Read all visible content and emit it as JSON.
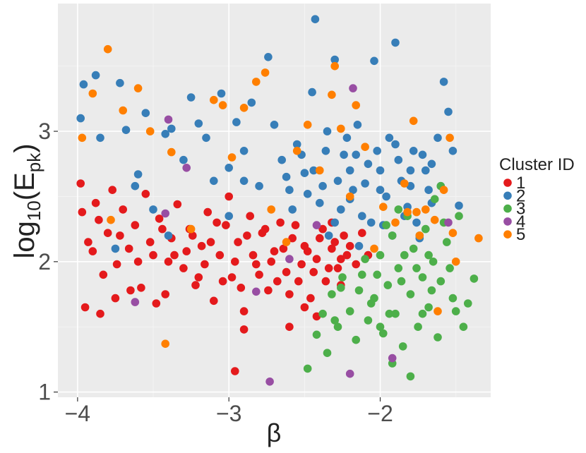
{
  "chart_data": {
    "type": "scatter",
    "title": "",
    "xlabel": "β",
    "ylabel_main": "log",
    "ylabel_sub": "10",
    "ylabel_open": "(E",
    "ylabel_sub2": "pk",
    "ylabel_close": ")",
    "xlim": [
      -4.13,
      -1.27
    ],
    "ylim": [
      0.96,
      3.98
    ],
    "x_ticks": [
      -4,
      -3,
      -2
    ],
    "x_tick_labels": [
      "−4",
      "−3",
      "−2"
    ],
    "y_ticks": [
      1,
      2,
      3
    ],
    "y_tick_labels": [
      "1",
      "2",
      "3"
    ],
    "grid": true,
    "legend_title": "Cluster ID",
    "legend_position": "right",
    "series": [
      {
        "name": "1",
        "color": "#E41A1C",
        "points": [
          [
            -3.98,
            2.6
          ],
          [
            -3.97,
            2.38
          ],
          [
            -3.93,
            2.15
          ],
          [
            -3.9,
            2.08
          ],
          [
            -3.86,
            2.32
          ],
          [
            -3.83,
            1.9
          ],
          [
            -3.8,
            2.22
          ],
          [
            -3.77,
            2.55
          ],
          [
            -3.74,
            1.98
          ],
          [
            -3.7,
            2.4
          ],
          [
            -3.66,
            2.1
          ],
          [
            -3.62,
            2.28
          ],
          [
            -3.58,
            1.8
          ],
          [
            -3.55,
            2.52
          ],
          [
            -3.5,
            2.05
          ],
          [
            -3.46,
            2.33
          ],
          [
            -3.42,
            1.75
          ],
          [
            -3.38,
            2.18
          ],
          [
            -3.34,
            2.44
          ],
          [
            -3.3,
            1.95
          ],
          [
            -3.26,
            2.25
          ],
          [
            -3.22,
            1.82
          ],
          [
            -3.18,
            2.12
          ],
          [
            -3.14,
            2.38
          ],
          [
            -3.1,
            1.7
          ],
          [
            -3.06,
            2.05
          ],
          [
            -3.02,
            2.28
          ],
          [
            -2.98,
            1.88
          ],
          [
            -2.94,
            2.15
          ],
          [
            -2.9,
            1.62
          ],
          [
            -2.86,
            2.35
          ],
          [
            -2.82,
            1.98
          ],
          [
            -2.78,
            2.22
          ],
          [
            -2.74,
            1.78
          ],
          [
            -2.7,
            2.08
          ],
          [
            -2.66,
            2.3
          ],
          [
            -2.62,
            1.92
          ],
          [
            -2.58,
            2.18
          ],
          [
            -2.54,
            1.85
          ],
          [
            -2.5,
            2.12
          ],
          [
            -2.46,
            1.72
          ],
          [
            -2.42,
            2.02
          ],
          [
            -2.38,
            2.25
          ],
          [
            -2.34,
            1.95
          ],
          [
            -2.3,
            2.15
          ],
          [
            -2.26,
            1.82
          ],
          [
            -2.22,
            2.05
          ],
          [
            -3.95,
            1.65
          ],
          [
            -3.85,
            1.6
          ],
          [
            -3.75,
            1.72
          ],
          [
            -3.65,
            1.78
          ],
          [
            -3.48,
            1.68
          ],
          [
            -3.4,
            2.0
          ],
          [
            -3.28,
            2.08
          ],
          [
            -3.2,
            1.88
          ],
          [
            -3.12,
            2.15
          ],
          [
            -3.0,
            2.5
          ],
          [
            -2.96,
            2.0
          ],
          [
            -2.92,
            1.8
          ],
          [
            -2.88,
            2.2
          ],
          [
            -2.84,
            2.05
          ],
          [
            -2.8,
            1.9
          ],
          [
            -2.76,
            2.25
          ],
          [
            -2.72,
            2.0
          ],
          [
            -2.68,
            1.85
          ],
          [
            -2.64,
            2.1
          ],
          [
            -2.6,
            1.75
          ],
          [
            -2.56,
            2.28
          ],
          [
            -2.52,
            1.98
          ],
          [
            -2.48,
            2.08
          ],
          [
            -2.44,
            1.92
          ],
          [
            -2.4,
            2.18
          ],
          [
            -2.36,
            1.85
          ],
          [
            -2.32,
            2.1
          ],
          [
            -2.28,
            1.95
          ],
          [
            -2.24,
            2.2
          ],
          [
            -3.88,
            2.45
          ],
          [
            -3.72,
            2.2
          ],
          [
            -3.6,
            2.0
          ],
          [
            -3.52,
            2.15
          ],
          [
            -3.44,
            2.25
          ],
          [
            -3.36,
            2.05
          ],
          [
            -3.24,
            2.2
          ],
          [
            -3.16,
            1.98
          ],
          [
            -3.08,
            2.3
          ],
          [
            -3.04,
            1.85
          ],
          [
            -2.9,
            1.48
          ],
          [
            -2.96,
            1.16
          ],
          [
            -2.6,
            1.5
          ],
          [
            -2.5,
            1.65
          ],
          [
            -2.42,
            1.58
          ],
          [
            -2.32,
            2.3
          ],
          [
            -2.26,
            2.02
          ],
          [
            -2.2,
            2.12
          ],
          [
            -2.16,
            1.98
          ],
          [
            -2.12,
            2.22
          ],
          [
            -2.08,
            2.05
          ]
        ]
      },
      {
        "name": "2",
        "color": "#377EB8",
        "points": [
          [
            -3.98,
            3.1
          ],
          [
            -3.96,
            3.36
          ],
          [
            -3.88,
            3.43
          ],
          [
            -3.85,
            2.95
          ],
          [
            -3.72,
            3.37
          ],
          [
            -3.68,
            3.01
          ],
          [
            -3.6,
            2.67
          ],
          [
            -3.55,
            3.14
          ],
          [
            -3.5,
            2.4
          ],
          [
            -3.42,
            2.98
          ],
          [
            -3.38,
            3.02
          ],
          [
            -3.3,
            2.78
          ],
          [
            -3.25,
            3.26
          ],
          [
            -3.2,
            3.06
          ],
          [
            -3.15,
            2.95
          ],
          [
            -3.1,
            2.62
          ],
          [
            -3.05,
            3.29
          ],
          [
            -3.0,
            2.72
          ],
          [
            -2.95,
            3.07
          ],
          [
            -2.9,
            2.85
          ],
          [
            -2.85,
            3.22
          ],
          [
            -2.8,
            2.58
          ],
          [
            -2.74,
            3.57
          ],
          [
            -2.7,
            3.05
          ],
          [
            -2.65,
            2.78
          ],
          [
            -2.6,
            2.55
          ],
          [
            -2.55,
            2.9
          ],
          [
            -2.5,
            2.68
          ],
          [
            -2.45,
            3.3
          ],
          [
            -2.43,
            3.86
          ],
          [
            -2.4,
            2.45
          ],
          [
            -2.35,
            3.0
          ],
          [
            -2.3,
            3.55
          ],
          [
            -2.28,
            2.62
          ],
          [
            -2.24,
            2.82
          ],
          [
            -2.2,
            2.48
          ],
          [
            -2.15,
            3.05
          ],
          [
            -2.12,
            2.35
          ],
          [
            -2.08,
            2.75
          ],
          [
            -2.04,
            3.54
          ],
          [
            -2.0,
            2.55
          ],
          [
            -1.98,
            2.28
          ],
          [
            -1.94,
            2.95
          ],
          [
            -1.9,
            3.68
          ],
          [
            -1.86,
            2.62
          ],
          [
            -1.82,
            2.42
          ],
          [
            -1.78,
            2.85
          ],
          [
            -1.74,
            2.18
          ],
          [
            -1.7,
            2.7
          ],
          [
            -1.66,
            2.45
          ],
          [
            -1.62,
            2.95
          ],
          [
            -1.58,
            3.38
          ],
          [
            -1.55,
            3.15
          ],
          [
            -1.52,
            2.85
          ],
          [
            -1.48,
            2.43
          ],
          [
            -2.38,
            2.58
          ],
          [
            -2.34,
            2.2
          ],
          [
            -2.26,
            2.4
          ],
          [
            -2.22,
            2.95
          ],
          [
            -2.18,
            2.55
          ],
          [
            -2.14,
            2.12
          ],
          [
            -2.1,
            2.6
          ],
          [
            -2.06,
            2.3
          ],
          [
            -2.02,
            2.85
          ],
          [
            -1.96,
            2.5
          ],
          [
            -1.92,
            2.2
          ],
          [
            -1.88,
            2.78
          ],
          [
            -1.84,
            2.35
          ],
          [
            -1.8,
            2.58
          ],
          [
            -1.76,
            2.3
          ],
          [
            -1.72,
            2.82
          ],
          [
            -1.68,
            2.55
          ],
          [
            -2.62,
            2.65
          ],
          [
            -2.58,
            2.4
          ],
          [
            -2.52,
            2.82
          ],
          [
            -2.48,
            2.52
          ],
          [
            -2.44,
            2.7
          ],
          [
            -2.36,
            2.85
          ],
          [
            -2.3,
            2.3
          ],
          [
            -2.9,
            2.62
          ],
          [
            -3.0,
            2.35
          ],
          [
            -3.4,
            2.2
          ],
          [
            -3.62,
            2.58
          ],
          [
            -3.75,
            2.1
          ],
          [
            -2.2,
            2.7
          ],
          [
            -2.16,
            2.82
          ],
          [
            -2.0,
            2.7
          ],
          [
            -1.9,
            2.9
          ],
          [
            -1.8,
            2.7
          ],
          [
            -1.66,
            2.75
          ],
          [
            -1.6,
            2.58
          ]
        ]
      },
      {
        "name": "3",
        "color": "#4DAF4A",
        "points": [
          [
            -2.42,
            1.44
          ],
          [
            -2.38,
            1.6
          ],
          [
            -2.35,
            1.3
          ],
          [
            -2.32,
            1.75
          ],
          [
            -2.28,
            1.5
          ],
          [
            -2.25,
            1.88
          ],
          [
            -2.2,
            1.62
          ],
          [
            -2.16,
            1.4
          ],
          [
            -2.12,
            1.9
          ],
          [
            -2.08,
            1.55
          ],
          [
            -2.04,
            1.72
          ],
          [
            -2.0,
            2.05
          ],
          [
            -1.98,
            1.45
          ],
          [
            -1.95,
            1.82
          ],
          [
            -1.92,
            2.2
          ],
          [
            -1.9,
            1.6
          ],
          [
            -1.88,
            1.95
          ],
          [
            -1.85,
            1.35
          ],
          [
            -1.82,
            2.35
          ],
          [
            -1.8,
            1.75
          ],
          [
            -1.78,
            2.1
          ],
          [
            -1.75,
            1.5
          ],
          [
            -1.72,
            1.88
          ],
          [
            -1.7,
            2.25
          ],
          [
            -1.68,
            1.65
          ],
          [
            -1.65,
            2.0
          ],
          [
            -1.62,
            1.42
          ],
          [
            -1.6,
            1.85
          ],
          [
            -1.56,
            2.15
          ],
          [
            -1.52,
            1.72
          ],
          [
            -1.48,
            2.35
          ],
          [
            -1.45,
            1.5
          ],
          [
            -1.42,
            1.68
          ],
          [
            -1.38,
            1.87
          ],
          [
            -1.92,
            1.22
          ],
          [
            -1.8,
            1.12
          ],
          [
            -2.48,
            1.18
          ],
          [
            -2.3,
            1.55
          ],
          [
            -2.26,
            1.8
          ],
          [
            -2.1,
            2.02
          ],
          [
            -2.06,
            1.68
          ],
          [
            -2.02,
            1.9
          ],
          [
            -1.94,
            1.6
          ],
          [
            -1.86,
            1.85
          ],
          [
            -1.76,
            1.95
          ],
          [
            -1.66,
            1.78
          ],
          [
            -1.58,
            2.3
          ],
          [
            -1.54,
            1.95
          ],
          [
            -1.5,
            1.62
          ],
          [
            -1.88,
            2.4
          ],
          [
            -1.84,
            2.05
          ],
          [
            -1.74,
            2.2
          ],
          [
            -1.64,
            2.48
          ],
          [
            -1.6,
            2.58
          ],
          [
            -2.14,
            1.78
          ],
          [
            -2.0,
            1.5
          ],
          [
            -1.96,
            2.28
          ],
          [
            -1.72,
            1.6
          ],
          [
            -1.68,
            2.05
          ]
        ]
      },
      {
        "name": "4",
        "color": "#984EA3",
        "points": [
          [
            -3.4,
            3.09
          ],
          [
            -3.28,
            2.72
          ],
          [
            -3.42,
            2.37
          ],
          [
            -3.62,
            1.69
          ],
          [
            -2.82,
            1.77
          ],
          [
            -2.73,
            1.08
          ],
          [
            -2.2,
            1.14
          ],
          [
            -2.18,
            3.33
          ],
          [
            -2.42,
            2.28
          ],
          [
            -2.6,
            2.02
          ],
          [
            -1.92,
            1.26
          ],
          [
            -1.55,
            2.3
          ]
        ]
      },
      {
        "name": "5",
        "color": "#FF7F00",
        "points": [
          [
            -3.97,
            2.95
          ],
          [
            -3.9,
            3.29
          ],
          [
            -3.8,
            3.63
          ],
          [
            -3.78,
            2.32
          ],
          [
            -3.7,
            3.16
          ],
          [
            -3.6,
            3.33
          ],
          [
            -3.52,
            3.0
          ],
          [
            -3.42,
            1.37
          ],
          [
            -3.38,
            2.84
          ],
          [
            -3.25,
            2.25
          ],
          [
            -3.1,
            3.24
          ],
          [
            -3.04,
            3.2
          ],
          [
            -2.98,
            2.8
          ],
          [
            -2.9,
            3.18
          ],
          [
            -2.82,
            3.38
          ],
          [
            -2.76,
            3.45
          ],
          [
            -2.72,
            2.4
          ],
          [
            -2.62,
            2.15
          ],
          [
            -2.55,
            2.85
          ],
          [
            -2.48,
            3.05
          ],
          [
            -2.4,
            2.7
          ],
          [
            -2.32,
            3.28
          ],
          [
            -2.3,
            3.5
          ],
          [
            -2.26,
            3.02
          ],
          [
            -2.2,
            2.5
          ],
          [
            -2.16,
            3.2
          ],
          [
            -2.1,
            2.88
          ],
          [
            -2.04,
            2.1
          ],
          [
            -1.98,
            2.42
          ],
          [
            -1.9,
            2.3
          ],
          [
            -1.84,
            2.6
          ],
          [
            -1.78,
            3.08
          ],
          [
            -1.74,
            2.2
          ],
          [
            -1.7,
            2.4
          ],
          [
            -1.64,
            2.32
          ],
          [
            -1.58,
            2.55
          ],
          [
            -1.54,
            2.95
          ],
          [
            -1.52,
            2.22
          ],
          [
            -1.35,
            2.18
          ],
          [
            -1.62,
            1.62
          ],
          [
            -1.5,
            2.0
          ],
          [
            -1.82,
            2.38
          ],
          [
            -1.76,
            2.38
          ]
        ]
      }
    ]
  }
}
